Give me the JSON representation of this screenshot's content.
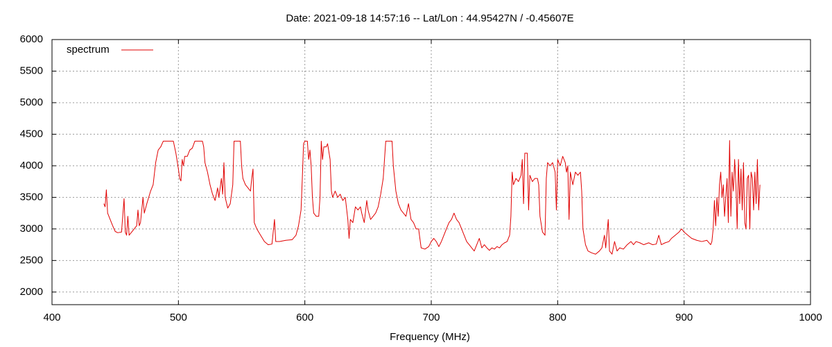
{
  "chart_data": {
    "type": "line",
    "title": "Date: 2021-09-18 14:57:16  --  Lat/Lon : 44.95427N / -0.45607E",
    "x_label": "Frequency (MHz)",
    "xlim": [
      400,
      1000
    ],
    "xticks": [
      400,
      500,
      600,
      700,
      800,
      900,
      1000
    ],
    "ylim": [
      1800,
      6000
    ],
    "yticks": [
      2000,
      2500,
      3000,
      3500,
      4000,
      4500,
      5000,
      5500,
      6000
    ],
    "grid": true,
    "legend": "top-left",
    "x": [
      441,
      442,
      443,
      444,
      446,
      448,
      450,
      452,
      455,
      457,
      458,
      459,
      460,
      461,
      463,
      465,
      467,
      468,
      469,
      470,
      472,
      473,
      475,
      478,
      480,
      482,
      484,
      486,
      488,
      492,
      496,
      498,
      500,
      501,
      502,
      503,
      504,
      505,
      507,
      509,
      511,
      513,
      516,
      519,
      520,
      521,
      523,
      525,
      527,
      529,
      531,
      532,
      534,
      535,
      536,
      537,
      539,
      541,
      543,
      544,
      547,
      549,
      550,
      551,
      553,
      555,
      557,
      558,
      559,
      560,
      562,
      565,
      568,
      571,
      574,
      576,
      577,
      580,
      585,
      590,
      593,
      595,
      597,
      598,
      599,
      600,
      602,
      603,
      604,
      605,
      606,
      607,
      609,
      611,
      612,
      613,
      614,
      615,
      617,
      618,
      620,
      621,
      622,
      624,
      626,
      628,
      630,
      632,
      634,
      635,
      636,
      638,
      640,
      642,
      644,
      645,
      647,
      649,
      650,
      652,
      654,
      656,
      658,
      660,
      662,
      664,
      667,
      669,
      670,
      672,
      674,
      676,
      678,
      680,
      682,
      684,
      686,
      688,
      690,
      691,
      692,
      695,
      698,
      700,
      702,
      704,
      706,
      708,
      710,
      712,
      714,
      716,
      718,
      720,
      722,
      724,
      726,
      728,
      730,
      732,
      734,
      736,
      738,
      740,
      742,
      744,
      746,
      748,
      750,
      752,
      754,
      756,
      758,
      760,
      762,
      763,
      764,
      765,
      767,
      769,
      771,
      772,
      773,
      774,
      776,
      777,
      778,
      780,
      782,
      784,
      785,
      786,
      788,
      790,
      791,
      792,
      794,
      796,
      798,
      799,
      800,
      802,
      804,
      806,
      807,
      808,
      809,
      810,
      812,
      814,
      816,
      818,
      819,
      820,
      822,
      824,
      827,
      830,
      833,
      835,
      837,
      838,
      840,
      841,
      843,
      845,
      847,
      849,
      852,
      855,
      858,
      860,
      862,
      865,
      868,
      872,
      875,
      878,
      880,
      882,
      885,
      888,
      890,
      893,
      896,
      898,
      900,
      903,
      906,
      910,
      914,
      918,
      921,
      922,
      923,
      924,
      925,
      926,
      927,
      928,
      929,
      930,
      931,
      932,
      934,
      935,
      936,
      937,
      938,
      939,
      940,
      941,
      942,
      943,
      944,
      945,
      946,
      947,
      948,
      949,
      950,
      951,
      952,
      953,
      954,
      955,
      956,
      957,
      958,
      959,
      960
    ],
    "series": [
      {
        "name": "spectrum",
        "color": "#e00000",
        "values": [
          3400,
          3350,
          3620,
          3250,
          3150,
          3050,
          2960,
          2940,
          2950,
          3480,
          2950,
          2900,
          3200,
          2900,
          2950,
          3000,
          3050,
          3300,
          3050,
          3100,
          3500,
          3250,
          3400,
          3600,
          3700,
          4050,
          4250,
          4300,
          4390,
          4390,
          4390,
          4200,
          3950,
          3800,
          3760,
          4100,
          4000,
          4150,
          4150,
          4250,
          4280,
          4390,
          4390,
          4390,
          4300,
          4050,
          3900,
          3700,
          3550,
          3450,
          3650,
          3500,
          3800,
          3550,
          4050,
          3500,
          3330,
          3400,
          3700,
          4390,
          4390,
          4390,
          4000,
          3800,
          3700,
          3650,
          3600,
          3800,
          3950,
          3100,
          3000,
          2900,
          2800,
          2750,
          2760,
          3150,
          2800,
          2800,
          2820,
          2830,
          2900,
          3050,
          3300,
          3800,
          4350,
          4390,
          4390,
          4100,
          4250,
          4000,
          3500,
          3250,
          3200,
          3200,
          3500,
          4390,
          4100,
          4300,
          4300,
          4350,
          4100,
          3600,
          3500,
          3600,
          3500,
          3550,
          3450,
          3500,
          3150,
          2850,
          3150,
          3100,
          3350,
          3300,
          3350,
          3250,
          3100,
          3450,
          3300,
          3150,
          3200,
          3250,
          3350,
          3550,
          3800,
          4390,
          4390,
          4390,
          4000,
          3600,
          3400,
          3300,
          3250,
          3200,
          3400,
          3150,
          3100,
          3000,
          3000,
          2850,
          2700,
          2680,
          2720,
          2800,
          2850,
          2800,
          2720,
          2800,
          2900,
          3000,
          3100,
          3150,
          3250,
          3150,
          3100,
          3000,
          2900,
          2800,
          2750,
          2700,
          2650,
          2750,
          2850,
          2700,
          2750,
          2700,
          2660,
          2700,
          2680,
          2720,
          2700,
          2750,
          2780,
          2800,
          2900,
          3200,
          3900,
          3700,
          3800,
          3750,
          3850,
          4100,
          3400,
          4200,
          4200,
          3300,
          3850,
          3750,
          3800,
          3800,
          3700,
          3200,
          2950,
          2900,
          3800,
          4050,
          4000,
          4050,
          3900,
          3300,
          4100,
          4000,
          4150,
          4050,
          3900,
          4000,
          3150,
          3900,
          3700,
          3900,
          3850,
          3900,
          3600,
          3000,
          2750,
          2650,
          2620,
          2600,
          2650,
          2700,
          2900,
          2700,
          3150,
          2650,
          2600,
          2800,
          2650,
          2700,
          2680,
          2750,
          2800,
          2750,
          2800,
          2780,
          2750,
          2780,
          2750,
          2760,
          2900,
          2750,
          2780,
          2800,
          2850,
          2900,
          2950,
          3000,
          2950,
          2900,
          2850,
          2820,
          2800,
          2820,
          2750,
          2800,
          3000,
          3450,
          3050,
          3500,
          3200,
          3700,
          3900,
          3500,
          3700,
          3200,
          3800,
          3100,
          4400,
          3200,
          3900,
          3600,
          4100,
          3700,
          3000,
          4100,
          3400,
          3950,
          3300,
          4050,
          3100,
          3000,
          3800,
          3850,
          3000,
          3900,
          3800,
          3300,
          3900,
          3400,
          4100,
          3300,
          3700
        ]
      }
    ]
  }
}
